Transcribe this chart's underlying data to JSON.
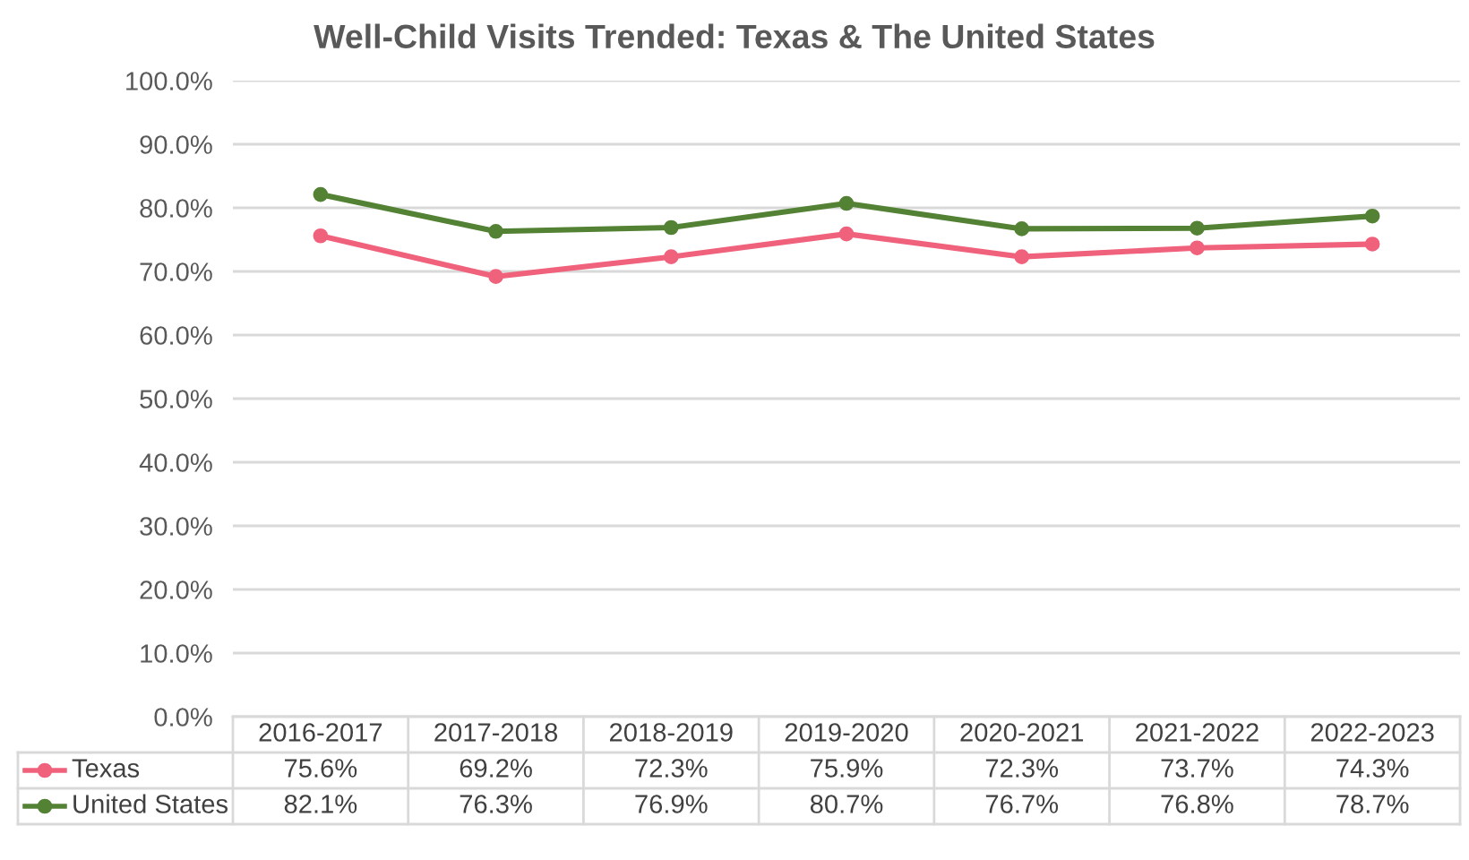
{
  "chart_data": {
    "type": "line",
    "title": "Well-Child Visits Trended: Texas & The United States",
    "categories": [
      "2016-2017",
      "2017-2018",
      "2018-2019",
      "2019-2020",
      "2020-2021",
      "2021-2022",
      "2022-2023"
    ],
    "series": [
      {
        "name": "Texas",
        "color": "#f0627c",
        "values": [
          75.6,
          69.2,
          72.3,
          75.9,
          72.3,
          73.7,
          74.3
        ],
        "value_labels": [
          "75.6%",
          "69.2%",
          "72.3%",
          "75.9%",
          "72.3%",
          "73.7%",
          "74.3%"
        ]
      },
      {
        "name": "United States",
        "color": "#548235",
        "values": [
          82.1,
          76.3,
          76.9,
          80.7,
          76.7,
          76.8,
          78.7
        ],
        "value_labels": [
          "82.1%",
          "76.3%",
          "76.9%",
          "80.7%",
          "76.7%",
          "76.8%",
          "78.7%"
        ]
      }
    ],
    "ylim": [
      0,
      100
    ],
    "yticks": [
      {
        "value": 0,
        "label": "0.0%"
      },
      {
        "value": 10,
        "label": "10.0%"
      },
      {
        "value": 20,
        "label": "20.0%"
      },
      {
        "value": 30,
        "label": "30.0%"
      },
      {
        "value": 40,
        "label": "40.0%"
      },
      {
        "value": 50,
        "label": "50.0%"
      },
      {
        "value": 60,
        "label": "60.0%"
      },
      {
        "value": 70,
        "label": "70.0%"
      },
      {
        "value": 80,
        "label": "80.0%"
      },
      {
        "value": 90,
        "label": "90.0%"
      },
      {
        "value": 100,
        "label": "100.0%"
      }
    ],
    "grid": "y",
    "legend": "bottom",
    "marker": "circle",
    "line_style": "solid"
  }
}
